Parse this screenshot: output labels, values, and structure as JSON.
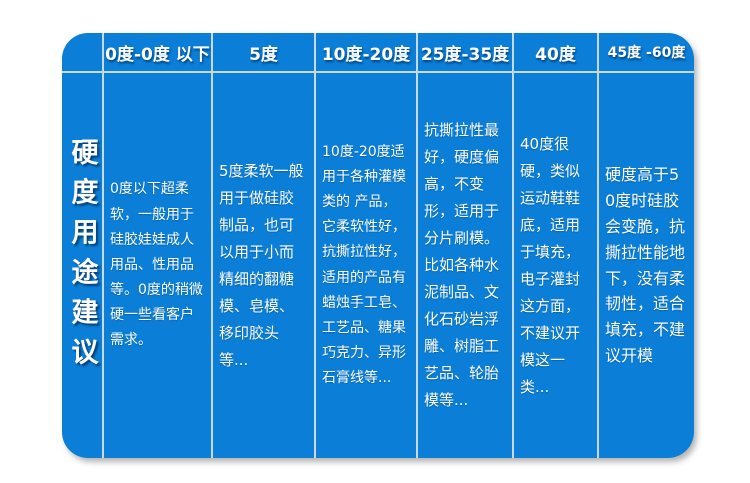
{
  "page": {
    "background": "#ffffff"
  },
  "table": {
    "row_label": "硬度用途建议",
    "colors": {
      "table_background": "#0b7fd7",
      "grid_line": "#c9d9e3",
      "text": "#ffffff"
    },
    "columns": [
      {
        "header": "0度-0度 以下",
        "body": "0度以下超柔软，一般用于硅胶娃娃成人用品、性用品等。0度的稍微硬一些看客户需求。"
      },
      {
        "header": "5度",
        "body": "5度柔软一般用于做硅胶制品，也可以用于小而精细的翻糖模、皂模、移印胶头等..."
      },
      {
        "header": "10度-20度",
        "body": "10度-20度适用于各种灌模类的 产品，它柔软性好，抗撕拉性好，适用的产品有蜡烛手工皂、工艺品、糖果巧克力、异形石膏线等..."
      },
      {
        "header": "25度-35度",
        "body": "抗撕拉性最好，硬度偏高，不变形，适用于分片刷模。比如各种水泥制品、文化石砂岩浮雕、树脂工艺品、轮胎模等..."
      },
      {
        "header": "40度",
        "body": "40度很 硬，类似运动鞋鞋底，适用于填充，电子灌封这方面，不建议开模这一类..."
      },
      {
        "header": "45度 -60度",
        "body": "硬度高于50度时硅胶会变脆，抗撕拉性能地下，没有柔韧性，适合填充，不建议开模"
      }
    ]
  },
  "chart_data": {
    "type": "table",
    "title": "硬度用途建议",
    "columns": [
      "0度-0度 以下",
      "5度",
      "10度-20度",
      "25度-35度",
      "40度",
      "45度 -60度"
    ],
    "rows": [
      [
        "0度以下超柔软，一般用于硅胶娃娃成人用品、性用品等。0度的稍微硬一些看客户需求。",
        "5度柔软一般用于做硅胶制品，也可以用于小而精细的翻糖模、皂模、移印胶头等...",
        "10度-20度适用于各种灌模类的 产品，它柔软性好，抗撕拉性好，适用的产品有蜡烛手工皂、工艺品、糖果巧克力、异形石膏线等...",
        "抗撕拉性最好，硬度偏高，不变形，适用于分片刷模。比如各种水泥制品、文化石砂岩浮雕、树脂工艺品、轮胎模等...",
        "40度很 硬，类似运动鞋鞋底，适用于填充，电子灌封这方面，不建议开模这一类...",
        "硬度高于50度时硅胶会变脆，抗撕拉性能地下，没有柔韧性，适合填充，不建议开模"
      ]
    ],
    "row_header": "硬度用途建议",
    "layout": "single data row; leftmost vertical label column; rounded blue table on white background"
  }
}
